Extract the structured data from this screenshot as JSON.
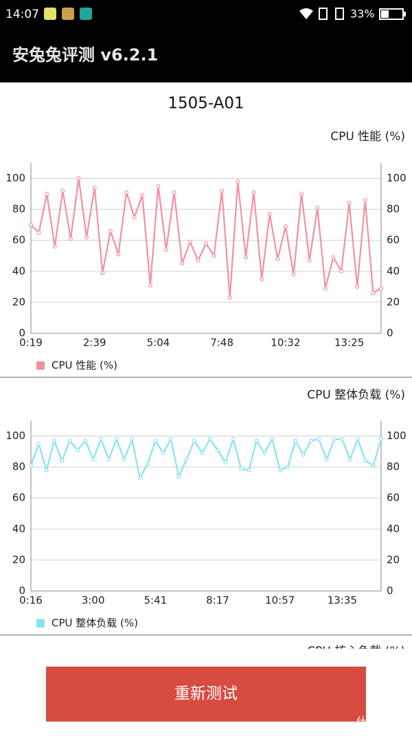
{
  "status_bar": {
    "time": "14:07",
    "battery": "33%"
  },
  "app_bar": {
    "title": "安兔兔评测 v6.2.1"
  },
  "device": "1505-A01",
  "chart_data": [
    {
      "type": "line",
      "title": "CPU 性能 (%)",
      "categories": [
        "0:19",
        null,
        null,
        null,
        null,
        null,
        null,
        null,
        "2:39",
        null,
        null,
        null,
        null,
        null,
        null,
        null,
        "5:04",
        null,
        null,
        null,
        null,
        null,
        null,
        null,
        "7:48",
        null,
        null,
        null,
        null,
        null,
        null,
        null,
        "10:32",
        null,
        null,
        null,
        null,
        null,
        null,
        null,
        "13:25",
        null,
        null,
        null,
        null
      ],
      "series": [
        {
          "name": "CPU 性能 (%)",
          "color": "#f4909f",
          "values": [
            70,
            65,
            90,
            56,
            92,
            61,
            100,
            62,
            94,
            39,
            66,
            51,
            91,
            75,
            89,
            31,
            95,
            54,
            91,
            45,
            59,
            47,
            58,
            50,
            92,
            23,
            98,
            49,
            91,
            35,
            77,
            48,
            69,
            38,
            90,
            47,
            81,
            29,
            49,
            40,
            84,
            30,
            86,
            26,
            29
          ]
        }
      ],
      "ylim": [
        0,
        110
      ],
      "yticks": [
        0,
        20,
        40,
        60,
        80,
        100
      ],
      "y2lim": [
        0,
        110
      ],
      "y2ticks": [
        0,
        20,
        40,
        60,
        80,
        100
      ],
      "grid": true
    },
    {
      "type": "line",
      "title": "CPU 整体负载 (%)",
      "categories": [
        "0:16",
        null,
        null,
        null,
        null,
        null,
        null,
        null,
        "3:00",
        null,
        null,
        null,
        null,
        null,
        null,
        null,
        "5:41",
        null,
        null,
        null,
        null,
        null,
        null,
        null,
        "8:17",
        null,
        null,
        null,
        null,
        null,
        null,
        null,
        "10:57",
        null,
        null,
        null,
        null,
        null,
        null,
        null,
        "13:35",
        null,
        null,
        null,
        null,
        null
      ],
      "series": [
        {
          "name": "CPU 整体负载 (%)",
          "color": "#86e3f2",
          "values": [
            81,
            95,
            78,
            97,
            84,
            97,
            91,
            97,
            85,
            98,
            85,
            98,
            85,
            98,
            73,
            82,
            97,
            89,
            98,
            74,
            85,
            97,
            89,
            98,
            91,
            83,
            98,
            79,
            78,
            97,
            89,
            98,
            78,
            80,
            97,
            88,
            97,
            98,
            85,
            98,
            98,
            85,
            98,
            84,
            81,
            98
          ]
        }
      ],
      "ylim": [
        0,
        110
      ],
      "yticks": [
        0,
        20,
        40,
        60,
        80,
        100
      ],
      "y2lim": [
        0,
        110
      ],
      "y2ticks": [
        0,
        20,
        40,
        60,
        80,
        100
      ],
      "grid": true
    }
  ],
  "next_chart_title": "CPU 核心负载 (%)",
  "button": "重新测试",
  "watermark": "什么值得买"
}
